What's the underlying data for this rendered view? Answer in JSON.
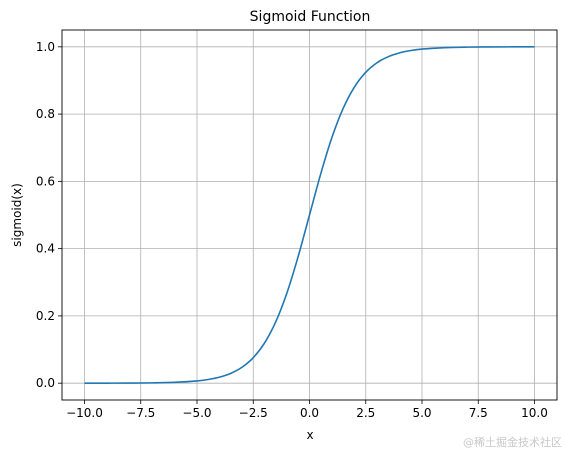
{
  "chart_data": {
    "type": "line",
    "title": "Sigmoid Function",
    "xlabel": "x",
    "ylabel": "sigmoid(x)",
    "xlim": [
      -11,
      11
    ],
    "ylim": [
      -0.05,
      1.05
    ],
    "grid": true,
    "xticks": [
      -10.0,
      -7.5,
      -5.0,
      -2.5,
      0.0,
      2.5,
      5.0,
      7.5,
      10.0
    ],
    "xtick_labels": [
      "−10.0",
      "−7.5",
      "−5.0",
      "−2.5",
      "0.0",
      "2.5",
      "5.0",
      "7.5",
      "10.0"
    ],
    "yticks": [
      0.0,
      0.2,
      0.4,
      0.6,
      0.8,
      1.0
    ],
    "ytick_labels": [
      "0.0",
      "0.2",
      "0.4",
      "0.6",
      "0.8",
      "1.0"
    ],
    "series": [
      {
        "color": "#1f77b4",
        "x": [
          -10,
          -9,
          -8,
          -7,
          -6,
          -5,
          -4.5,
          -4,
          -3.5,
          -3,
          -2.5,
          -2,
          -1.5,
          -1,
          -0.5,
          0,
          0.5,
          1,
          1.5,
          2,
          2.5,
          3,
          3.5,
          4,
          4.5,
          5,
          6,
          7,
          8,
          9,
          10
        ],
        "y": [
          4.54e-05,
          0.000123,
          0.000335,
          0.000911,
          0.00247,
          0.00669,
          0.011,
          0.018,
          0.0293,
          0.0474,
          0.0759,
          0.1192,
          0.1824,
          0.2689,
          0.3775,
          0.5,
          0.6225,
          0.7311,
          0.8176,
          0.8808,
          0.9241,
          0.9526,
          0.9707,
          0.982,
          0.989,
          0.9933,
          0.9975,
          0.9991,
          0.99966,
          0.99988,
          0.99995
        ]
      }
    ]
  },
  "watermark": "@稀土掘金技术社区"
}
